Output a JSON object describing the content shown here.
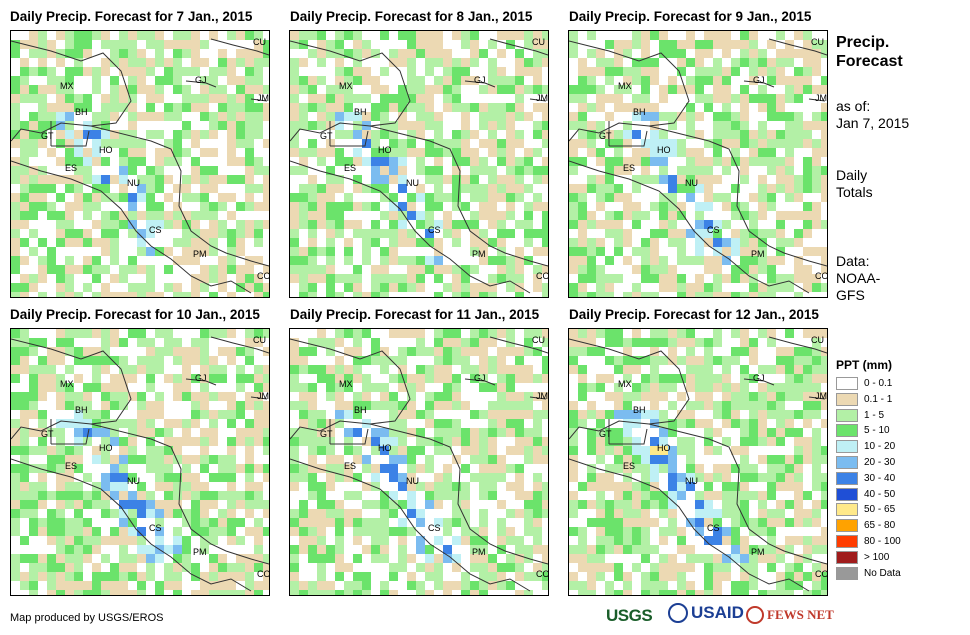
{
  "panels": [
    {
      "title": "Daily Precip. Forecast for 7 Jan., 2015"
    },
    {
      "title": "Daily Precip. Forecast for 8 Jan., 2015"
    },
    {
      "title": "Daily Precip. Forecast for 9 Jan., 2015"
    },
    {
      "title": "Daily Precip. Forecast for 10 Jan., 2015"
    },
    {
      "title": "Daily Precip. Forecast for 11 Jan., 2015"
    },
    {
      "title": "Daily Precip. Forecast for 12 Jan., 2015"
    }
  ],
  "country_labels": [
    "CU",
    "MX",
    "BH",
    "GJ",
    "JM",
    "GT",
    "HO",
    "ES",
    "NU",
    "CS",
    "PM",
    "CO"
  ],
  "sidebar": {
    "title_line1": "Precip.",
    "title_line2": "Forecast",
    "asof_line1": "as of:",
    "asof_line2": "Jan 7, 2015",
    "totals_line1": "Daily",
    "totals_line2": "Totals",
    "data_line1": "Data:",
    "data_line2": "NOAA-",
    "data_line3": "GFS"
  },
  "legend": {
    "title": "PPT (mm)",
    "items": [
      {
        "label": "0 - 0.1",
        "color": "#ffffff"
      },
      {
        "label": "0.1 - 1",
        "color": "#ecd9b3"
      },
      {
        "label": "1 - 5",
        "color": "#b3f0a6"
      },
      {
        "label": "5 - 10",
        "color": "#6be36b"
      },
      {
        "label": "10 - 20",
        "color": "#bff0f5"
      },
      {
        "label": "20 - 30",
        "color": "#7bbcf0"
      },
      {
        "label": "30 - 40",
        "color": "#3c82e6"
      },
      {
        "label": "40 - 50",
        "color": "#1f4fd6"
      },
      {
        "label": "50 - 65",
        "color": "#ffe98a"
      },
      {
        "label": "65 - 80",
        "color": "#ffa200"
      },
      {
        "label": "80 - 100",
        "color": "#ff3c00"
      },
      {
        "label": "> 100",
        "color": "#a01c1c"
      },
      {
        "label": "No Data",
        "color": "#999999"
      }
    ]
  },
  "footer": {
    "credit": "Map produced by USGS/EROS",
    "logo_usgs": "USGS",
    "logo_usaid": "USAID",
    "logo_fews": "FEWS NET"
  }
}
